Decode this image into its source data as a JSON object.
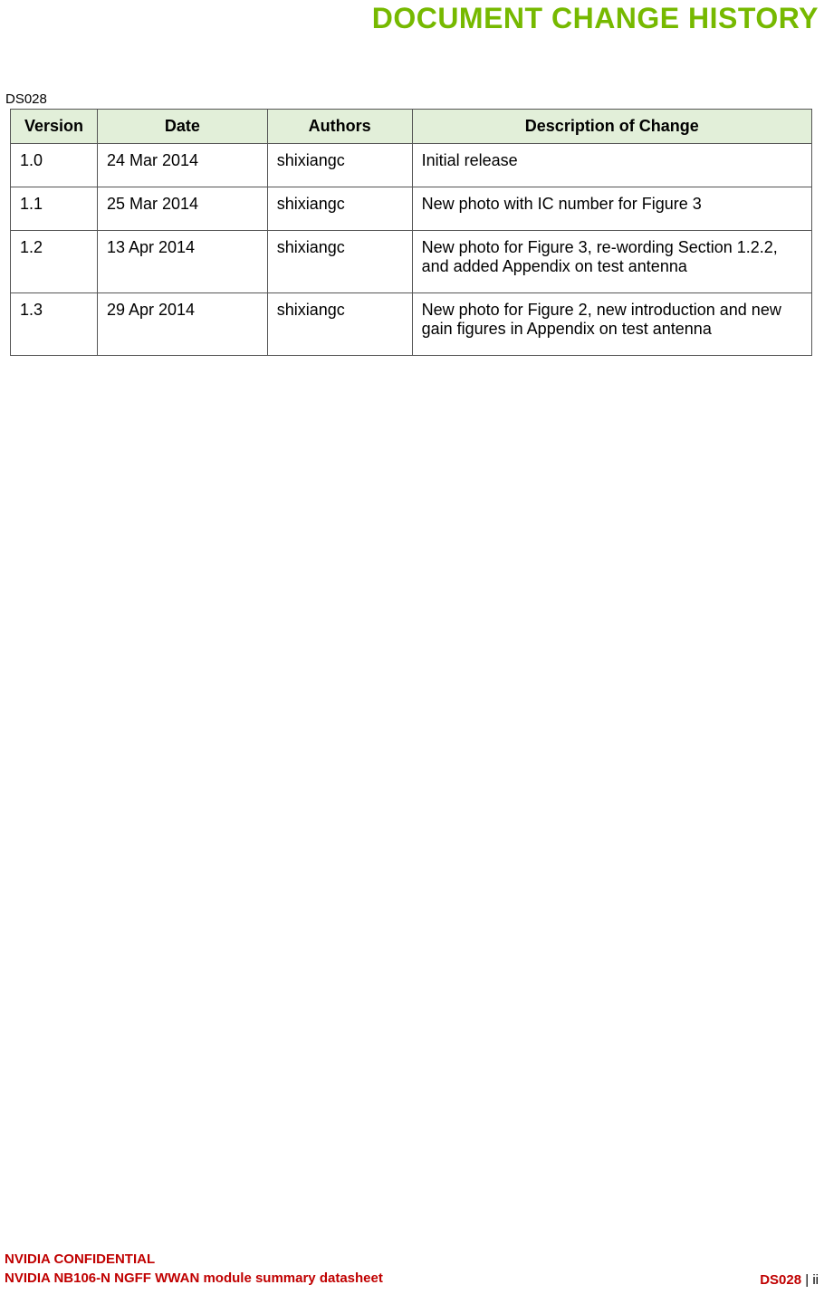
{
  "title": "DOCUMENT CHANGE HISTORY",
  "doc_id": "DS028",
  "table": {
    "columns": [
      "Version",
      "Date",
      "Authors",
      "Description of Change"
    ],
    "rows": [
      [
        "1.0",
        "24 Mar 2014",
        "shixiangc",
        "Initial release"
      ],
      [
        "1.1",
        "25 Mar 2014",
        "shixiangc",
        "New photo with IC number for Figure 3"
      ],
      [
        "1.2",
        "13 Apr 2014",
        "shixiangc",
        "New photo for Figure 3, re-wording Section 1.2.2, and added Appendix on test antenna"
      ],
      [
        "1.3",
        "29 Apr 2014",
        "shixiangc",
        "New photo for Figure 2, new introduction and new gain figures in Appendix on test antenna"
      ]
    ],
    "header_bg": "#e2efd9",
    "border_color": "#555555"
  },
  "footer": {
    "line1": "NVIDIA CONFIDENTIAL",
    "line2": "NVIDIA NB106-N NGFF WWAN module summary datasheet",
    "right_ds": "DS028",
    "right_sep": "  |  ",
    "right_page": "ii"
  },
  "colors": {
    "title": "#76b900",
    "footer_red": "#c00000"
  }
}
